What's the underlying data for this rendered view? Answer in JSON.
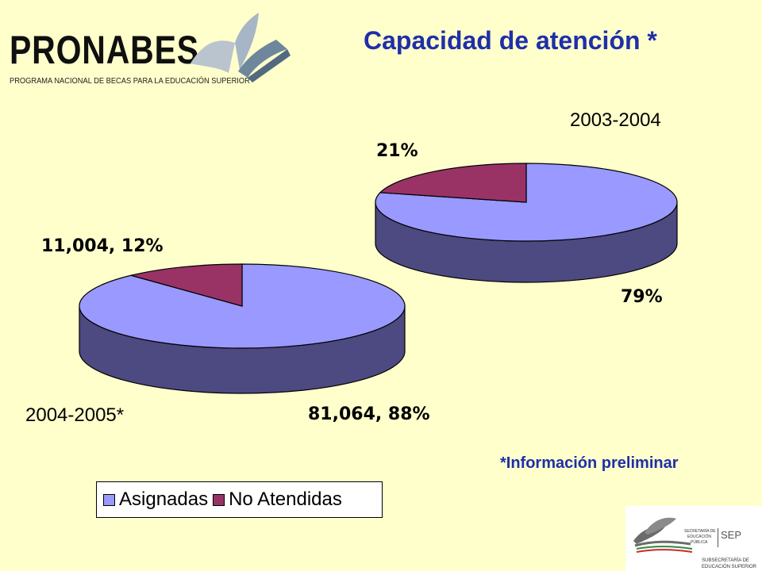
{
  "header": {
    "logo_word": "PRONABES",
    "logo_subtitle": "PROGRAMA NACIONAL DE BECAS PARA LA EDUCACIÓN SUPERIOR",
    "title": "Capacidad de atención *"
  },
  "note": "*Información preliminar",
  "colors": {
    "asignadas": "#9999ff",
    "asignadas_side": "#4c4a80",
    "no_atendidas": "#993366",
    "no_atendidas_side": "#4d1a33",
    "title": "#1f2fa8",
    "background": "#ffffcc"
  },
  "chart_data": [
    {
      "type": "pie",
      "title": "2003-2004",
      "categories": [
        "Asignadas",
        "No Atendidas"
      ],
      "values": [
        79,
        21
      ],
      "data_labels": [
        "79%",
        "21%"
      ],
      "style": "3d"
    },
    {
      "type": "pie",
      "title": "2004-2005*",
      "categories": [
        "Asignadas",
        "No Atendidas"
      ],
      "values": [
        81064,
        11004
      ],
      "data_labels": [
        "81,064, 88%",
        "11,004, 12%"
      ],
      "style": "3d"
    }
  ],
  "legend": {
    "items": [
      {
        "label": "Asignadas"
      },
      {
        "label": "No Atendidas"
      }
    ],
    "placement": "bottom-left"
  },
  "sep_logo": {
    "line1": "SECRETARÍA DE",
    "line2": "EDUCACIÓN",
    "line3": "PÚBLICA",
    "mark": "SEP",
    "bottom1": "SUBSECRETARÍA DE",
    "bottom2": "EDUCACIÓN SUPERIOR"
  }
}
